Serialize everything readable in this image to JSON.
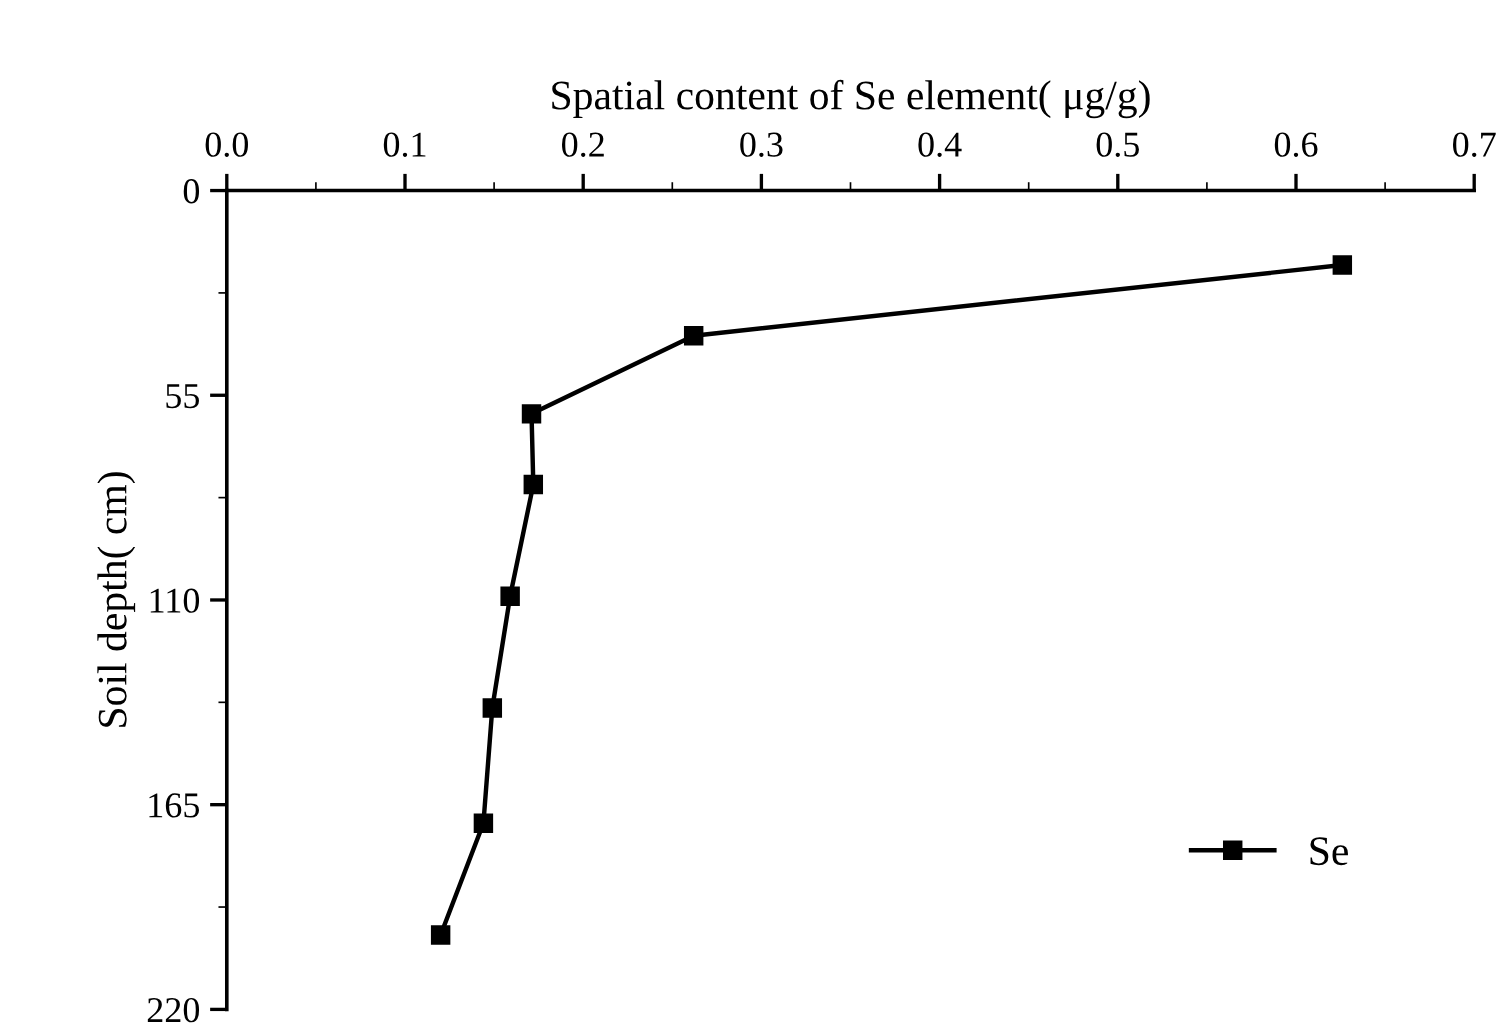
{
  "chart_data": {
    "type": "line",
    "xlabel": "Spatial content of Se element( μg/g)",
    "ylabel": "Soil depth( cm)",
    "xlim": [
      0,
      0.7
    ],
    "xticks": [
      {
        "value": 0,
        "label": "0.0"
      },
      0.1,
      0.2,
      0.3,
      0.4,
      0.5,
      0.6,
      0.7
    ],
    "ylim": [
      220,
      0
    ],
    "yticks": [
      0,
      55,
      110,
      165,
      220
    ],
    "grid": false,
    "legend": "bottom right",
    "marker": "square",
    "line_style": "solid",
    "series": [
      {
        "name": "Se",
        "color": "#000000",
        "x": [
          0.626,
          0.262,
          0.171,
          0.172,
          0.159,
          0.149,
          0.144,
          0.12
        ],
        "values": [
          20,
          39,
          60,
          79,
          109,
          139,
          170,
          200
        ]
      }
    ]
  }
}
